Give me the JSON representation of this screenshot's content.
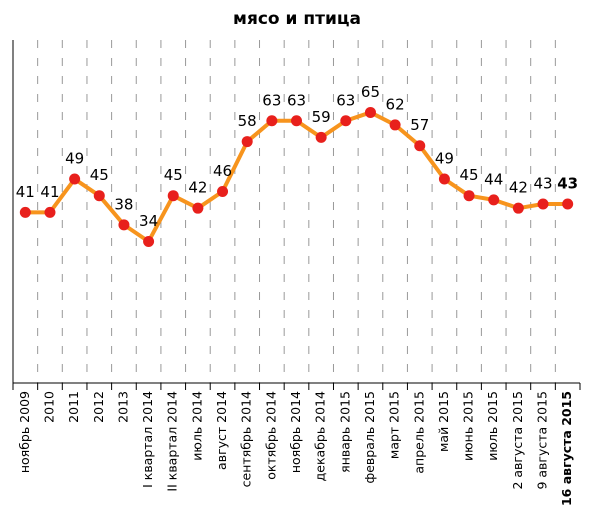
{
  "chart_data": {
    "type": "line",
    "title": "мясо и птица",
    "categories": [
      "ноябрь 2009",
      "2010",
      "2011",
      "2012",
      "2013",
      "I квартал 2014",
      "II квартал 2014",
      "июль 2014",
      "август 2014",
      "сентябрь 2014",
      "октябрь 2014",
      "ноябрь 2014",
      "декабрь 2014",
      "январь 2015",
      "февраль 2015",
      "март 2015",
      "апрель 2015",
      "май 2015",
      "июнь 2015",
      "июль 2015",
      "2 августа 2015",
      "9 августа 2015",
      "16 августа 2015"
    ],
    "series": [
      {
        "name": "мясо и птица",
        "color": "#f7941d",
        "marker_color": "#e8201c",
        "values": [
          41,
          41,
          49,
          45,
          38,
          34,
          45,
          42,
          46,
          58,
          63,
          63,
          59,
          63,
          65,
          62,
          57,
          49,
          45,
          44,
          42,
          43,
          43
        ]
      }
    ],
    "ylim": [
      0,
      80
    ],
    "grid": true
  }
}
